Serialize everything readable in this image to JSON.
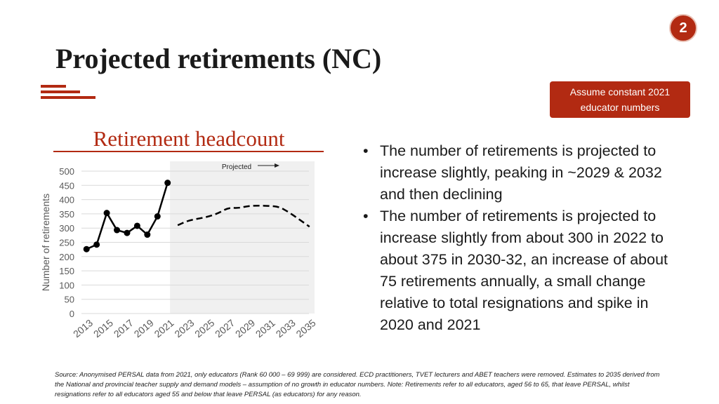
{
  "page_number": "2",
  "title": "Projected retirements (NC)",
  "assumption_box": {
    "line1": "Assume constant 2021",
    "line2": "educator numbers"
  },
  "chart_heading": "Retirement headcount",
  "chart_data": {
    "type": "line",
    "title": "Retirement headcount",
    "ylabel": "Number of retirements",
    "xlabel": "",
    "ylim": [
      0,
      500
    ],
    "yticks": [
      0,
      50,
      100,
      150,
      200,
      250,
      300,
      350,
      400,
      450,
      500
    ],
    "x_tick_labels": [
      "2013",
      "2015",
      "2017",
      "2019",
      "2021",
      "2023",
      "2025",
      "2027",
      "2029",
      "2031",
      "2033",
      "2035"
    ],
    "grid": true,
    "projected_label": "Projected",
    "series": [
      {
        "style": "solid-markers",
        "x": [
          2013,
          2014,
          2015,
          2016,
          2017,
          2018,
          2019,
          2020,
          2021
        ],
        "values": [
          226,
          242,
          353,
          293,
          283,
          308,
          277,
          341,
          459
        ]
      },
      {
        "style": "dashed",
        "x": [
          2022,
          2023,
          2024,
          2025,
          2026,
          2027,
          2028,
          2029,
          2030,
          2031,
          2032,
          2033,
          2034,
          2035
        ],
        "values": [
          310,
          326,
          333,
          340,
          352,
          372,
          370,
          378,
          379,
          378,
          375,
          355,
          330,
          305
        ]
      }
    ],
    "colors": {
      "line": "#000000",
      "projected_band": "#f0f0f0",
      "grid": "#d9d9d9"
    }
  },
  "bullets": [
    "The number of retirements is projected to increase slightly, peaking in ~2029 & 2032 and then declining",
    "The number of retirements is projected to increase slightly from about 300 in 2022 to about 375 in 2030-32, an increase of about 75 retirements annually, a small change relative to total resignations and spike in 2020 and 2021"
  ],
  "source_note": "Source: Anonymised PERSAL data from 2021, only educators (Rank 60 000 – 69 999) are considered. ECD practitioners, TVET lecturers and ABET teachers were removed. Estimates to 2035 derived from the National and provincial teacher supply and demand models – assumption of no growth in educator numbers. Note: Retirements refer to all educators, aged 56 to 65, that leave PERSAL, whilst resignations refer to all educators aged 55 and below that leave PERSAL (as educators) for any reason.",
  "theme": {
    "accent": "#b22a12"
  }
}
